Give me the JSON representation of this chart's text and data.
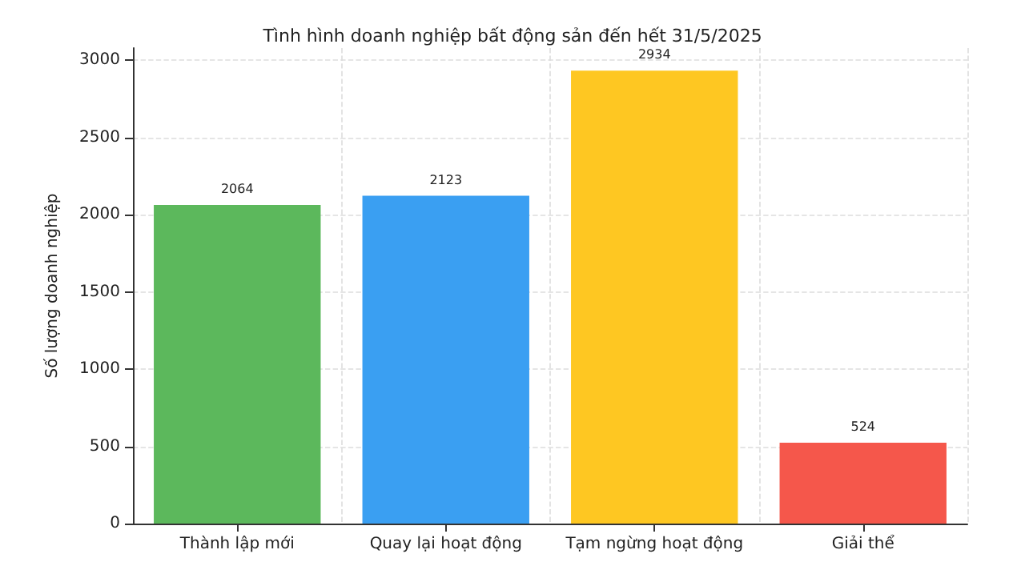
{
  "chart_data": {
    "type": "bar",
    "title": "Tình hình doanh nghiệp bất động sản đến hết 31/5/2025",
    "ylabel": "Số lượng doanh nghiệp",
    "categories": [
      "Thành lập mới",
      "Quay lại hoạt động",
      "Tạm ngừng hoạt động",
      "Giải thể"
    ],
    "values": [
      2064,
      2123,
      2934,
      524
    ],
    "colors": [
      "#5cb85c",
      "#3a9ff2",
      "#fec722",
      "#f5574b"
    ],
    "ylim": [
      0,
      3080
    ],
    "yticks": [
      0,
      500,
      1000,
      1500,
      2000,
      2500,
      3000
    ],
    "grid": true,
    "data_labels": true
  }
}
